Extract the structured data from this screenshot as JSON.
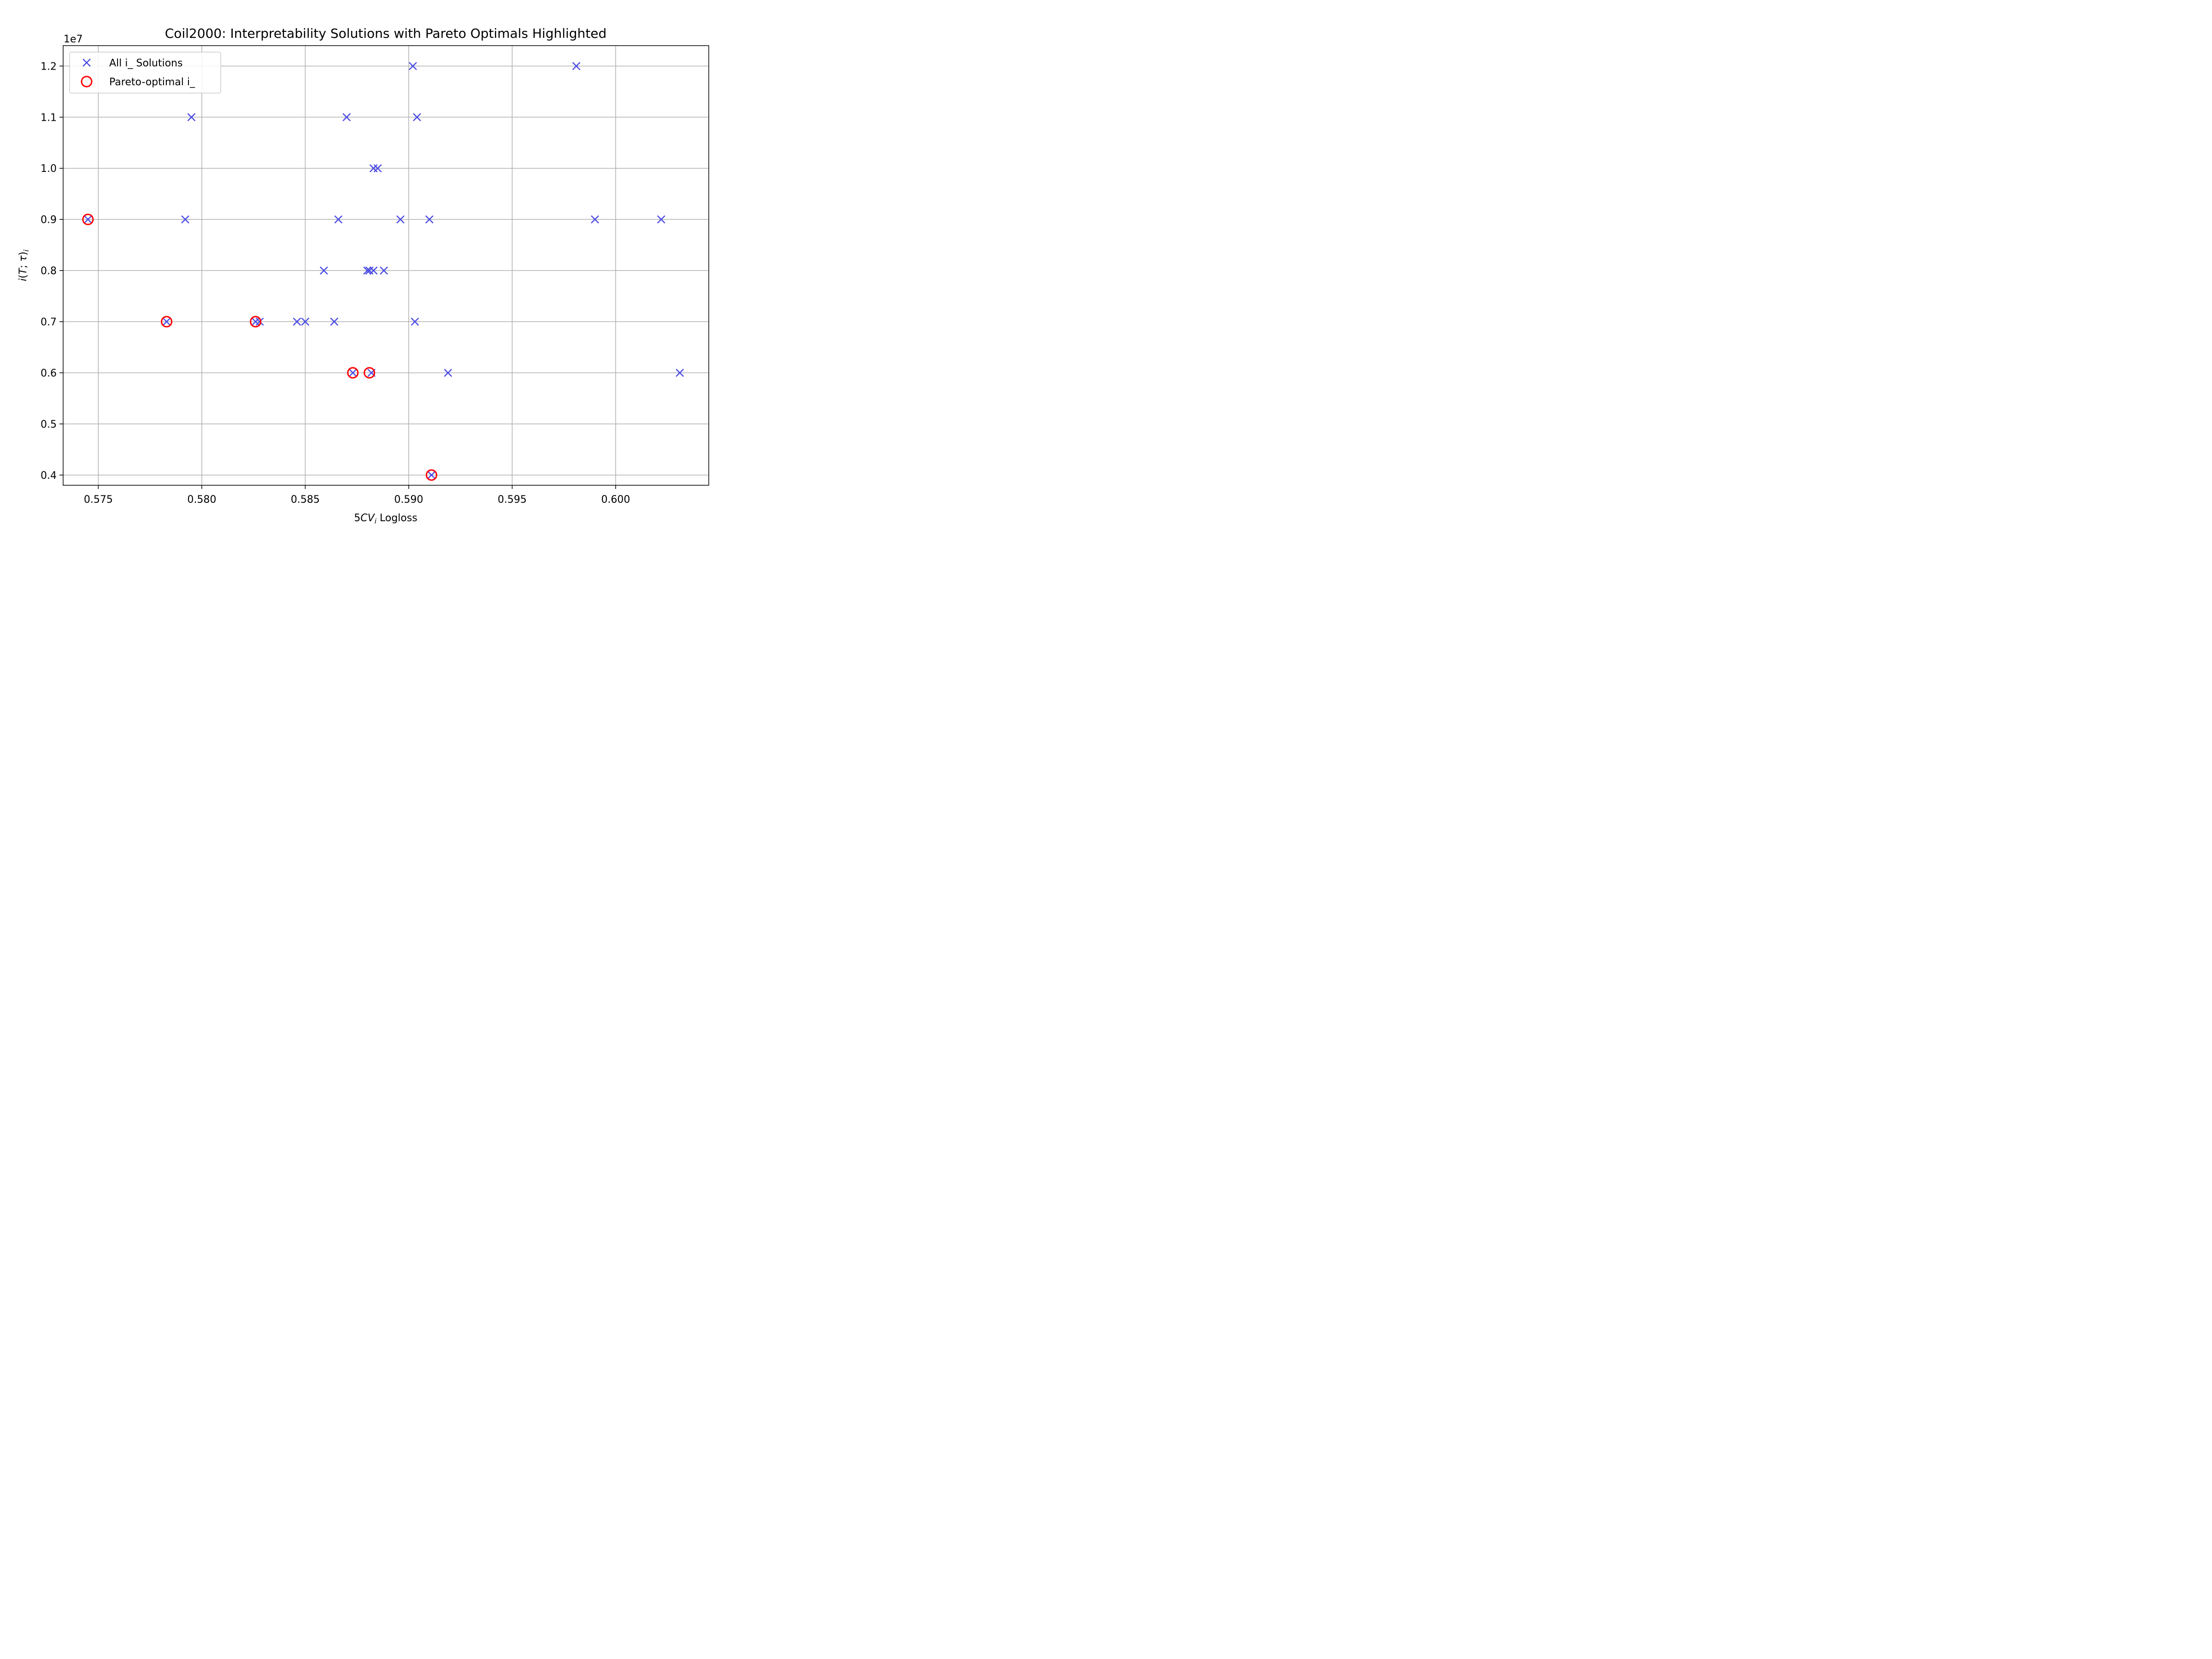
{
  "chart_data": {
    "type": "scatter",
    "title": "Coil2000: Interpretability Solutions with Pareto Optimals Highlighted",
    "xlabel": "5CV_i Logloss",
    "ylabel": "i(T; τ)_i",
    "y_offset_label": "1e7",
    "xlim": [
      0.5733,
      0.6045
    ],
    "ylim": [
      3.8,
      12.4
    ],
    "x_ticks": [
      0.575,
      0.58,
      0.585,
      0.59,
      0.595,
      0.6
    ],
    "x_tick_labels": [
      "0.575",
      "0.580",
      "0.585",
      "0.590",
      "0.595",
      "0.600"
    ],
    "y_ticks": [
      4,
      5,
      6,
      7,
      8,
      9,
      10,
      11,
      12
    ],
    "y_tick_labels": [
      "0.4",
      "0.5",
      "0.6",
      "0.7",
      "0.8",
      "0.9",
      "1.0",
      "1.1",
      "1.2"
    ],
    "grid": true,
    "legend_position": "upper-left",
    "series": [
      {
        "name": "All i_ Solutions",
        "marker": "x",
        "color": "#4b4be6",
        "points": [
          [
            0.5745,
            9.0
          ],
          [
            0.5792,
            9.0
          ],
          [
            0.5795,
            11.0
          ],
          [
            0.5783,
            7.0
          ],
          [
            0.5826,
            7.0
          ],
          [
            0.5828,
            7.0
          ],
          [
            0.5846,
            7.0
          ],
          [
            0.585,
            7.0
          ],
          [
            0.5864,
            7.0
          ],
          [
            0.5859,
            8.0
          ],
          [
            0.5866,
            9.0
          ],
          [
            0.587,
            11.0
          ],
          [
            0.5873,
            6.0
          ],
          [
            0.588,
            8.0
          ],
          [
            0.5881,
            8.0
          ],
          [
            0.5882,
            6.0
          ],
          [
            0.5883,
            8.0
          ],
          [
            0.5883,
            10.0
          ],
          [
            0.5885,
            10.0
          ],
          [
            0.5888,
            8.0
          ],
          [
            0.5896,
            9.0
          ],
          [
            0.5902,
            12.0
          ],
          [
            0.5903,
            7.0
          ],
          [
            0.5904,
            11.0
          ],
          [
            0.591,
            9.0
          ],
          [
            0.5911,
            4.0
          ],
          [
            0.5919,
            6.0
          ],
          [
            0.5981,
            12.0
          ],
          [
            0.599,
            9.0
          ],
          [
            0.6022,
            9.0
          ],
          [
            0.6031,
            6.0
          ]
        ]
      },
      {
        "name": "Pareto-optimal i_",
        "marker": "circle",
        "color": "#ff0000",
        "points": [
          [
            0.5745,
            9.0
          ],
          [
            0.5783,
            7.0
          ],
          [
            0.5826,
            7.0
          ],
          [
            0.5873,
            6.0
          ],
          [
            0.5881,
            6.0
          ],
          [
            0.5911,
            4.0
          ]
        ]
      }
    ]
  }
}
